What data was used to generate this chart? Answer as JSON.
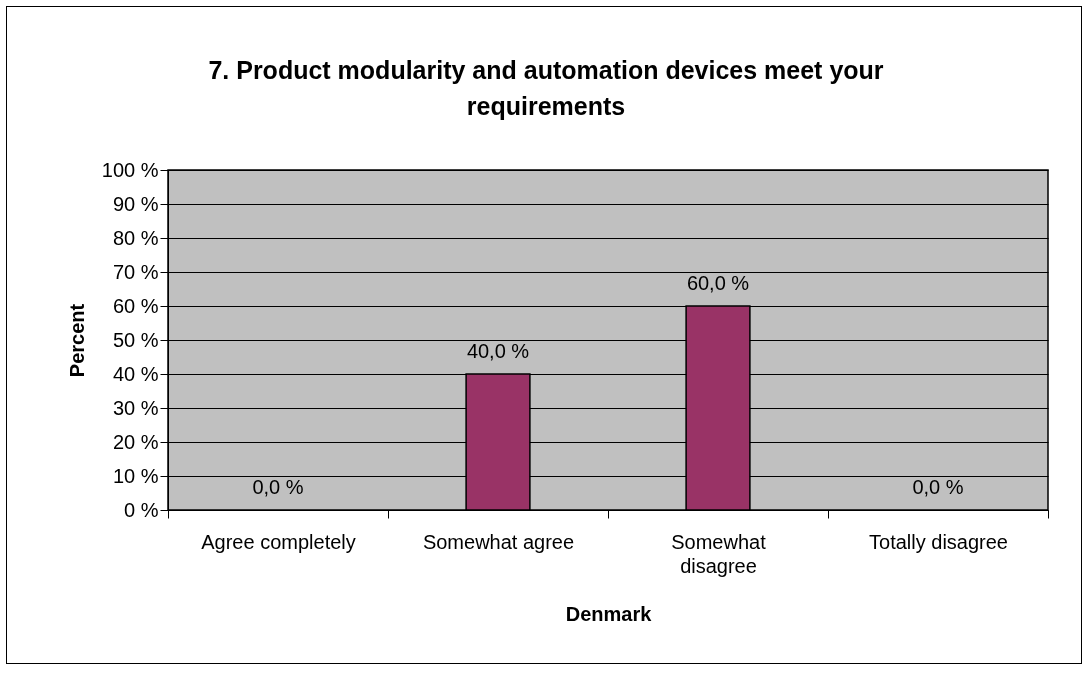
{
  "chart_data": {
    "type": "bar",
    "title": "7. Product modularity and automation devices meet your requirements",
    "xlabel": "Denmark",
    "ylabel": "Percent",
    "categories": [
      "Agree completely",
      "Somewhat agree",
      "Somewhat disagree",
      "Totally disagree"
    ],
    "values": [
      0,
      40,
      60,
      0
    ],
    "value_labels": [
      "0,0 %",
      "40,0 %",
      "60,0 %",
      "0,0 %"
    ],
    "color": "#993366",
    "ylim": [
      0,
      100
    ],
    "yticks": [
      {
        "value": 0,
        "label": "0 %"
      },
      {
        "value": 10,
        "label": "10 %"
      },
      {
        "value": 20,
        "label": "20 %"
      },
      {
        "value": 30,
        "label": "30 %"
      },
      {
        "value": 40,
        "label": "40 %"
      },
      {
        "value": 50,
        "label": "50 %"
      },
      {
        "value": 60,
        "label": "60 %"
      },
      {
        "value": 70,
        "label": "70 %"
      },
      {
        "value": 80,
        "label": "80 %"
      },
      {
        "value": 90,
        "label": "90 %"
      },
      {
        "value": 100,
        "label": "100 %"
      }
    ],
    "grid": "y"
  }
}
